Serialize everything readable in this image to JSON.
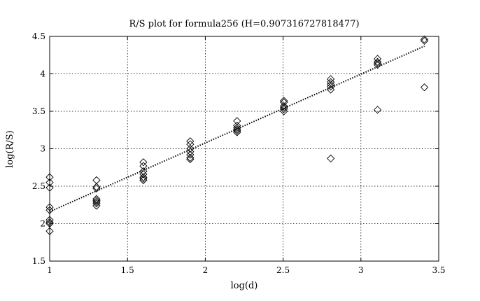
{
  "chart_data": {
    "type": "scatter",
    "title": "R/S plot for formula256 (H=0.907316727818477)",
    "xlabel": "log(d)",
    "ylabel": "log(R/S)",
    "xlim": [
      1,
      3.5
    ],
    "ylim": [
      1.5,
      4.5
    ],
    "xticks": [
      1,
      1.5,
      2,
      2.5,
      3,
      3.5
    ],
    "yticks": [
      1.5,
      2,
      2.5,
      3,
      3.5,
      4,
      4.5
    ],
    "xtick_labels": [
      "1",
      "1.5",
      "2",
      "2.5",
      "3",
      "3.5"
    ],
    "ytick_labels": [
      "1.5",
      "2",
      "2.5",
      "3",
      "3.5",
      "4",
      "4.5"
    ],
    "grid": true,
    "legend": "none",
    "marker": "diamond",
    "series": [
      {
        "x": [
          1,
          1,
          1,
          1,
          1,
          1,
          1,
          1,
          1,
          1.301,
          1.301,
          1.301,
          1.301,
          1.301,
          1.301,
          1.301,
          1.301,
          1.602,
          1.602,
          1.602,
          1.602,
          1.602,
          1.602,
          1.602,
          1.903,
          1.903,
          1.903,
          1.903,
          1.903,
          1.903,
          1.903,
          2.204,
          2.204,
          2.204,
          2.204,
          2.204,
          2.204,
          2.505,
          2.505,
          2.505,
          2.505,
          2.505,
          2.505,
          2.806,
          2.806,
          2.806,
          2.806,
          2.806,
          2.806,
          3.107,
          3.107,
          3.107,
          3.107,
          3.107,
          3.408,
          3.408,
          3.408
        ],
        "y": [
          2.62,
          2.55,
          2.48,
          2.22,
          2.18,
          2.05,
          2.02,
          2.0,
          1.9,
          2.58,
          2.49,
          2.47,
          2.33,
          2.31,
          2.29,
          2.27,
          2.24,
          2.82,
          2.77,
          2.7,
          2.66,
          2.62,
          2.6,
          2.58,
          3.1,
          3.06,
          3.0,
          2.96,
          2.92,
          2.88,
          2.86,
          3.37,
          3.31,
          3.28,
          3.26,
          3.24,
          3.22,
          3.64,
          3.62,
          3.57,
          3.55,
          3.53,
          3.5,
          3.93,
          3.89,
          3.86,
          3.83,
          3.79,
          2.87,
          4.2,
          4.16,
          4.14,
          4.12,
          3.52,
          4.46,
          4.44,
          3.82
        ]
      }
    ],
    "fit_line": {
      "x": [
        1,
        3.408
      ],
      "y": [
        2.16,
        4.37
      ],
      "style": "dotted"
    }
  }
}
